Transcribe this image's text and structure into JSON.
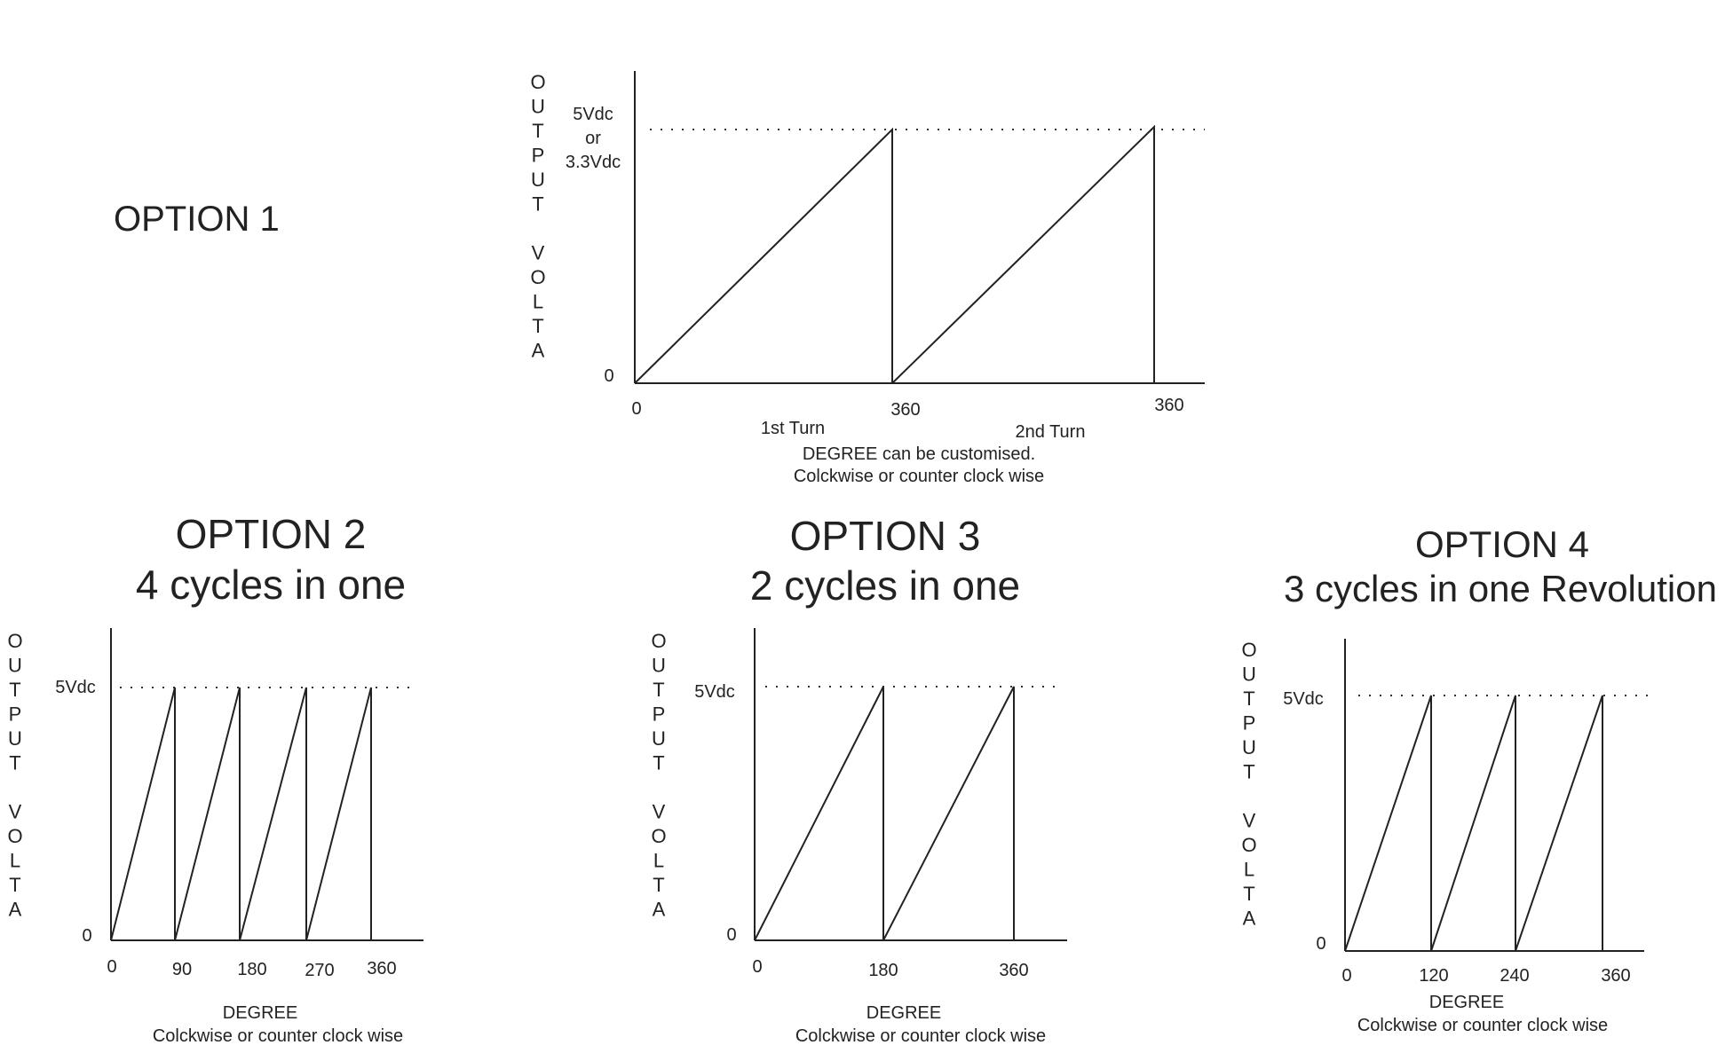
{
  "option1": {
    "title": "OPTION 1",
    "y_axis_label": [
      "O",
      "U",
      "T",
      "P",
      "U",
      "T",
      "",
      "V",
      "O",
      "L",
      "T",
      "A"
    ],
    "y_max_label": [
      "5Vdc",
      "or",
      "3.3Vdc"
    ],
    "y_zero": "0",
    "x_ticks": [
      "0",
      "360",
      "360"
    ],
    "turn_labels": [
      "1st Turn",
      "2nd Turn"
    ],
    "caption": [
      "DEGREE can be customised.",
      "Colckwise or counter clock wise"
    ]
  },
  "option2": {
    "title": "OPTION 2",
    "subtitle": "4 cycles in one",
    "y_axis_label": [
      "O",
      "U",
      "T",
      "P",
      "U",
      "T",
      "",
      "V",
      "O",
      "L",
      "T",
      "A"
    ],
    "y_max_label": "5Vdc",
    "y_zero": "0",
    "x_ticks": [
      "0",
      "90",
      "180",
      "270",
      "360"
    ],
    "x_label": "DEGREE",
    "caption": "Colckwise or counter clock wise"
  },
  "option3": {
    "title": "OPTION 3",
    "subtitle": "2 cycles in one",
    "y_axis_label": [
      "O",
      "U",
      "T",
      "P",
      "U",
      "T",
      "",
      "V",
      "O",
      "L",
      "T",
      "A"
    ],
    "y_max_label": "5Vdc",
    "y_zero": "0",
    "x_ticks": [
      "0",
      "180",
      "360"
    ],
    "x_label": "DEGREE",
    "caption": "Colckwise or counter clock wise"
  },
  "option4": {
    "title": "OPTION 4",
    "subtitle": "3 cycles in one Revolution",
    "y_axis_label": [
      "O",
      "U",
      "T",
      "P",
      "U",
      "T",
      "",
      "V",
      "O",
      "L",
      "T",
      "A"
    ],
    "y_max_label": "5Vdc",
    "y_zero": "0",
    "x_ticks": [
      "0",
      "120",
      "240",
      "360"
    ],
    "x_label": "DEGREE",
    "caption": "Colckwise or counter clock wise"
  }
}
